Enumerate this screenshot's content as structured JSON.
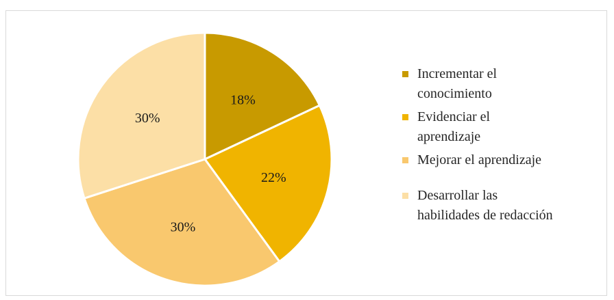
{
  "chart_data": {
    "type": "pie",
    "categories": [
      "Incrementar el conocimiento",
      "Evidenciar el aprendizaje",
      "Mejorar el aprendizaje",
      "Desarrollar las habilidades de redacción"
    ],
    "values": [
      18,
      22,
      30,
      30
    ],
    "labels": [
      "18%",
      "22%",
      "30%",
      "30%"
    ],
    "colors": [
      "#C89A00",
      "#F0B400",
      "#F9C86E",
      "#FCDFA6"
    ],
    "legend_position": "right"
  },
  "legend": {
    "items": [
      {
        "line1": "Incrementar el",
        "line2": "conocimiento"
      },
      {
        "line1": "Evidenciar el",
        "line2": "aprendizaje"
      },
      {
        "line1": "Mejorar el aprendizaje",
        "line2": ""
      },
      {
        "line1": "Desarrollar las",
        "line2": "habilidades de redacción"
      }
    ]
  }
}
